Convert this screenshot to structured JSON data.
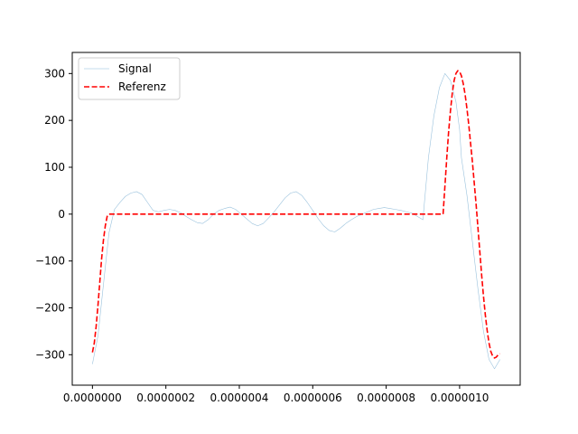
{
  "chart_data": {
    "type": "line",
    "title": "",
    "xlabel": "",
    "ylabel": "",
    "xlim": [
      -5.5e-08,
      1.165e-06
    ],
    "ylim": [
      -365,
      345
    ],
    "x_ticks": [
      0.0,
      2e-07,
      4e-07,
      6e-07,
      8e-07,
      1e-06
    ],
    "x_tick_labels": [
      "0.0000000",
      "0.0000002",
      "0.0000004",
      "0.0000006",
      "0.0000008",
      "0.0000010"
    ],
    "y_ticks": [
      -300,
      -200,
      -100,
      0,
      100,
      200,
      300
    ],
    "y_tick_labels": [
      "−300",
      "−200",
      "−100",
      "0",
      "100",
      "200",
      "300"
    ],
    "grid": false,
    "legend": "top-left",
    "series": [
      {
        "name": "Signal",
        "color": "#1f77b4",
        "style": "solid",
        "x": [
          0.0,
          1.5e-08,
          3e-08,
          4.5e-08,
          6e-08,
          7.5e-08,
          9e-08,
          1.05e-07,
          1.2e-07,
          1.35e-07,
          1.5e-07,
          1.65e-07,
          1.8e-07,
          1.95e-07,
          2.1e-07,
          2.25e-07,
          2.4e-07,
          2.55e-07,
          2.7e-07,
          2.85e-07,
          3e-07,
          3.15e-07,
          3.3e-07,
          3.45e-07,
          3.6e-07,
          3.75e-07,
          3.9e-07,
          4.05e-07,
          4.2e-07,
          4.35e-07,
          4.5e-07,
          4.65e-07,
          4.8e-07,
          4.95e-07,
          5.1e-07,
          5.25e-07,
          5.4e-07,
          5.55e-07,
          5.7e-07,
          5.85e-07,
          6e-07,
          6.15e-07,
          6.3e-07,
          6.45e-07,
          6.6e-07,
          6.75e-07,
          6.9e-07,
          7.05e-07,
          7.2e-07,
          7.35e-07,
          7.5e-07,
          7.65e-07,
          7.8e-07,
          7.95e-07,
          8.1e-07,
          8.25e-07,
          8.4e-07,
          8.55e-07,
          8.7e-07,
          8.85e-07,
          9e-07,
          9.15e-07,
          9.3e-07,
          9.45e-07,
          9.6e-07,
          9.75e-07,
          9.9e-07,
          1e-06,
          1.005e-06,
          1.02e-06,
          1.035e-06,
          1.05e-06,
          1.065e-06,
          1.08e-06,
          1.095e-06,
          1.11e-06
        ],
        "y": [
          -320,
          -260,
          -150,
          -40,
          10,
          25,
          38,
          45,
          48,
          42,
          25,
          8,
          5,
          8,
          10,
          8,
          3,
          -5,
          -12,
          -18,
          -20,
          -12,
          0,
          8,
          12,
          15,
          10,
          0,
          -10,
          -20,
          -25,
          -20,
          -8,
          5,
          20,
          35,
          45,
          48,
          40,
          25,
          8,
          -10,
          -25,
          -35,
          -38,
          -30,
          -20,
          -12,
          -5,
          0,
          5,
          10,
          12,
          14,
          12,
          10,
          8,
          5,
          2,
          -5,
          -12,
          120,
          210,
          270,
          300,
          285,
          240,
          180,
          120,
          40,
          -60,
          -160,
          -250,
          -310,
          -330,
          -310
        ]
      },
      {
        "name": "Referenz",
        "color": "#ff0000",
        "style": "dashed",
        "x": [
          0.0,
          5e-09,
          1e-08,
          1.5e-08,
          2e-08,
          2.5e-08,
          3e-08,
          3.5e-08,
          4e-08,
          4.5e-08,
          5e-08,
          1e-07,
          2e-07,
          3e-07,
          4e-07,
          5e-07,
          6e-07,
          7e-07,
          8e-07,
          9e-07,
          9.55e-07,
          9.6e-07,
          9.65e-07,
          9.7e-07,
          9.75e-07,
          9.8e-07,
          9.85e-07,
          9.9e-07,
          9.95e-07,
          1e-06,
          1.005e-06,
          1.01e-06,
          1.015e-06,
          1.02e-06,
          1.025e-06,
          1.03e-06,
          1.035e-06,
          1.04e-06,
          1.045e-06,
          1.05e-06,
          1.055e-06,
          1.06e-06,
          1.065e-06,
          1.07e-06,
          1.075e-06,
          1.08e-06,
          1.085e-06,
          1.09e-06,
          1.095e-06,
          1.1e-06,
          1.105e-06,
          1.11e-06
        ],
        "y": [
          -295,
          -275,
          -240,
          -195,
          -145,
          -95,
          -55,
          -25,
          -5,
          0,
          0,
          0,
          0,
          0,
          0,
          0,
          0,
          0,
          0,
          0,
          0,
          60,
          120,
          175,
          220,
          258,
          285,
          300,
          306,
          304,
          295,
          278,
          255,
          225,
          190,
          150,
          110,
          65,
          20,
          -30,
          -80,
          -130,
          -175,
          -215,
          -248,
          -275,
          -293,
          -303,
          -307,
          -305,
          -300,
          -298
        ]
      }
    ]
  }
}
